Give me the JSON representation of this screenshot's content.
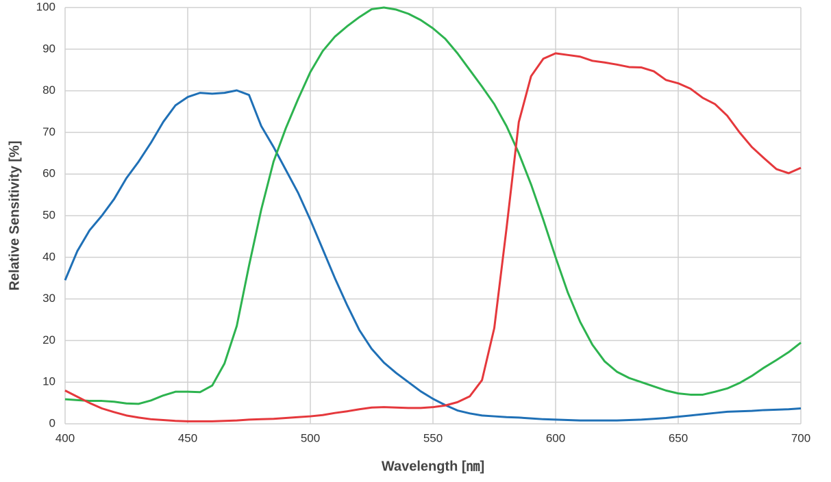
{
  "chart_data": {
    "type": "line",
    "xlabel": "Wavelength [㎚]",
    "ylabel": "Relative Sensitivity [%]",
    "x": [
      400,
      405,
      410,
      415,
      420,
      425,
      430,
      435,
      440,
      445,
      450,
      455,
      460,
      465,
      470,
      475,
      480,
      485,
      490,
      495,
      500,
      505,
      510,
      515,
      520,
      525,
      530,
      535,
      540,
      545,
      550,
      555,
      560,
      565,
      570,
      575,
      580,
      585,
      590,
      595,
      600,
      605,
      610,
      615,
      620,
      625,
      630,
      635,
      640,
      645,
      650,
      655,
      660,
      665,
      670,
      675,
      680,
      685,
      690,
      695,
      700
    ],
    "series": [
      {
        "color": "#1f70b6",
        "values": [
          34.5,
          41.5,
          46.5,
          50,
          54,
          59,
          63,
          67.5,
          72.5,
          76.5,
          78.5,
          79.5,
          79.3,
          79.5,
          80.1,
          79,
          71.5,
          66.5,
          61,
          55.5,
          49,
          42,
          35,
          28.5,
          22.5,
          18,
          14.7,
          12.2,
          10,
          7.8,
          6,
          4.5,
          3.2,
          2.5,
          2,
          1.8,
          1.6,
          1.5,
          1.3,
          1.1,
          1,
          0.9,
          0.8,
          0.8,
          0.8,
          0.8,
          0.9,
          1,
          1.2,
          1.4,
          1.7,
          2,
          2.3,
          2.6,
          2.9,
          3,
          3.1,
          3.3,
          3.4,
          3.5,
          3.7
        ]
      },
      {
        "color": "#2db34f",
        "values": [
          5.9,
          5.7,
          5.5,
          5.5,
          5.3,
          4.9,
          4.8,
          5.6,
          6.8,
          7.7,
          7.7,
          7.6,
          9.2,
          14.5,
          23.5,
          38,
          51.5,
          63,
          71,
          78,
          84.5,
          89.5,
          93,
          95.5,
          97.7,
          99.6,
          100,
          99.5,
          98.5,
          97,
          95,
          92.5,
          89,
          85,
          81,
          76.8,
          71.5,
          65,
          57.5,
          49,
          40,
          31.5,
          24.5,
          19,
          15,
          12.5,
          11,
          10,
          9,
          8,
          7.3,
          7,
          7,
          7.7,
          8.5,
          9.8,
          11.5,
          13.5,
          15.3,
          17.2,
          19.5
        ]
      },
      {
        "color": "#e5383c",
        "values": [
          8,
          6.5,
          5,
          3.7,
          2.8,
          2,
          1.5,
          1.1,
          0.9,
          0.7,
          0.6,
          0.6,
          0.6,
          0.7,
          0.8,
          1,
          1.1,
          1.2,
          1.4,
          1.6,
          1.8,
          2.1,
          2.6,
          3,
          3.5,
          3.9,
          4,
          3.9,
          3.8,
          3.8,
          4,
          4.4,
          5.2,
          6.6,
          10.5,
          23,
          47,
          72.5,
          83.5,
          87.7,
          89,
          88.6,
          88.2,
          87.2,
          86.8,
          86.3,
          85.7,
          85.6,
          84.7,
          82.6,
          81.8,
          80.5,
          78.3,
          76.8,
          74,
          70,
          66.5,
          63.8,
          61.2,
          60.2,
          61.5
        ]
      }
    ],
    "xlim": [
      400,
      700
    ],
    "xticks": [
      400,
      450,
      500,
      550,
      600,
      650,
      700
    ],
    "ylim": [
      0,
      100
    ],
    "yticks": [
      0,
      10,
      20,
      30,
      40,
      50,
      60,
      70,
      80,
      90,
      100
    ],
    "grid": true
  }
}
